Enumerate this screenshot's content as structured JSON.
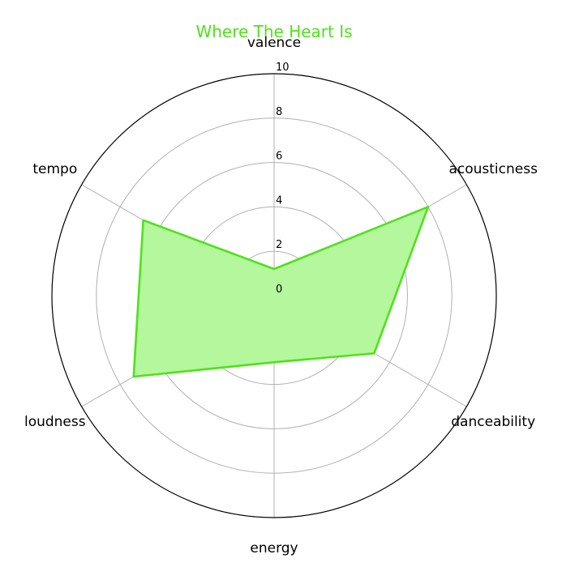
{
  "chart_data": {
    "type": "radar",
    "title": "Where The Heart Is",
    "axes": [
      "valence",
      "acousticness",
      "danceability",
      "energy",
      "loudness",
      "tempo"
    ],
    "series": [
      {
        "values": [
          1.2,
          8.0,
          5.2,
          3.0,
          7.3,
          6.8
        ]
      }
    ],
    "rlim": [
      0,
      10
    ],
    "rticks": [
      0,
      2,
      4,
      6,
      8,
      10
    ],
    "grid": true,
    "colors": {
      "title": "#4fe21a",
      "line": "#4fe21a",
      "fill": "#b4f79d",
      "grid": "#b0b0b0",
      "frame": "#000000"
    }
  }
}
